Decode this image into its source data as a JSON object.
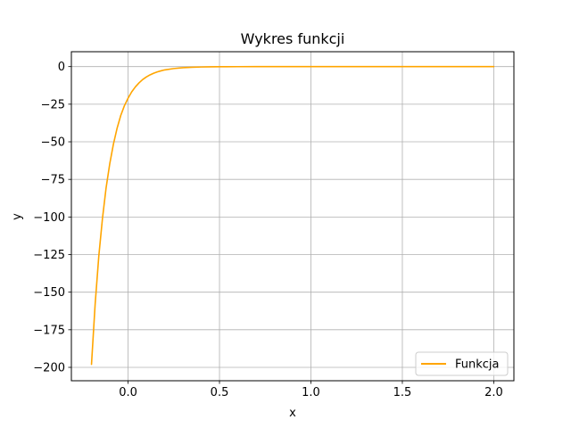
{
  "chart_data": {
    "type": "line",
    "title": "Wykres funkcji",
    "xlabel": "x",
    "ylabel": "y",
    "xlim": [
      -0.31,
      2.11
    ],
    "ylim": [
      -208.9,
      9.9
    ],
    "grid": true,
    "legend_position": "lower right",
    "x_ticks": [
      0.0,
      0.5,
      1.0,
      1.5,
      2.0
    ],
    "x_tick_labels": [
      "0.0",
      "0.5",
      "1.0",
      "1.5",
      "2.0"
    ],
    "y_ticks": [
      0,
      -25,
      -50,
      -75,
      -100,
      -125,
      -150,
      -175,
      -200
    ],
    "y_tick_labels": [
      "0",
      "−25",
      "−50",
      "−75",
      "−100",
      "−125",
      "−150",
      "−175",
      "−200"
    ],
    "series": [
      {
        "name": "Funkcja",
        "color": "#ffa500",
        "x": [
          -0.2,
          -0.18,
          -0.16,
          -0.14,
          -0.12,
          -0.1,
          -0.08,
          -0.06,
          -0.04,
          -0.02,
          0.0,
          0.02,
          0.04,
          0.06,
          0.08,
          0.1,
          0.12,
          0.14,
          0.16,
          0.18,
          0.2,
          0.25,
          0.3,
          0.35,
          0.4,
          0.45,
          0.5,
          0.6,
          0.7,
          0.8,
          1.0,
          1.2,
          1.4,
          1.6,
          1.8,
          2.0
        ],
        "y": [
          -198.0,
          -158.0,
          -126.0,
          -101.0,
          -80.5,
          -64.5,
          -51.5,
          -41.0,
          -32.5,
          -26.0,
          -21.0,
          -16.8,
          -13.5,
          -10.8,
          -8.6,
          -6.9,
          -5.5,
          -4.4,
          -3.5,
          -2.8,
          -2.2,
          -1.3,
          -0.75,
          -0.45,
          -0.26,
          -0.15,
          -0.09,
          -0.03,
          -0.01,
          0.0,
          0.0,
          0.0,
          0.0,
          0.0,
          0.0,
          0.0
        ]
      }
    ]
  }
}
